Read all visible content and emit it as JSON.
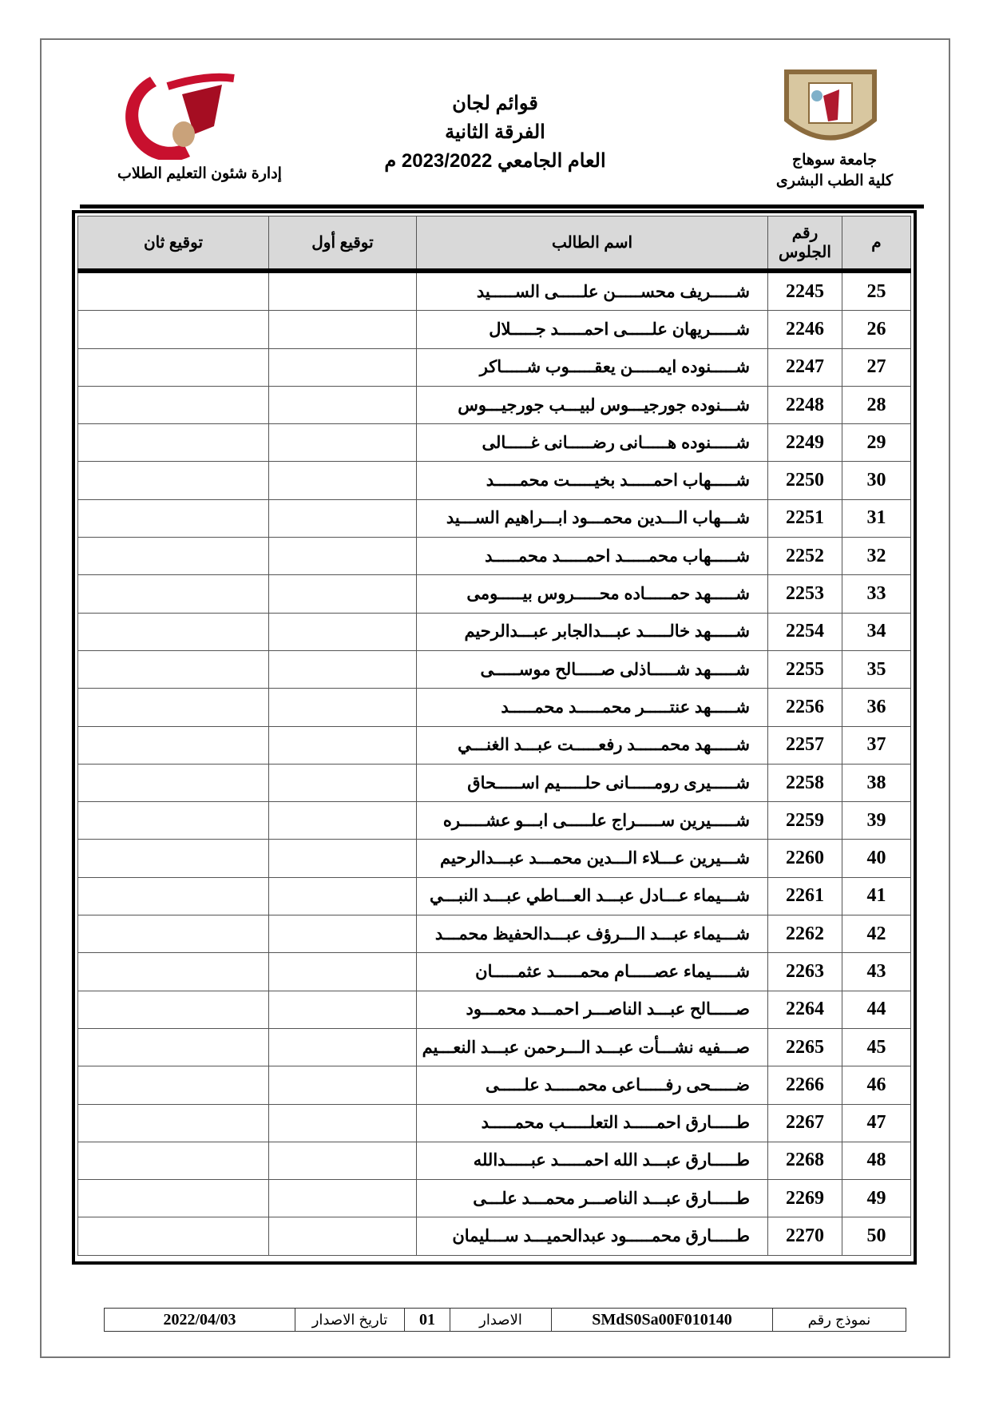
{
  "header": {
    "title": "قوائم لجان",
    "subtitle": "الفرقة الثانية",
    "year": "العام الجامعي 2023/2022 م",
    "department": "إدارة شئون التعليم الطلاب",
    "university": "جامعة سوهاج",
    "faculty": "كلية الطب البشرى",
    "left_logo_text": "جامعة سوهاج كلية الطب",
    "colors": {
      "logo_red": "#c8102e",
      "seal_brown": "#8b6b3d",
      "header_gray": "#d9d9d9"
    }
  },
  "table": {
    "columns": [
      "م",
      "رقم الجلوس",
      "اسم الطالب",
      "توقيع أول",
      "توقيع ثان"
    ],
    "rows": [
      {
        "n": "25",
        "seat": "2245",
        "name": "شـــــريف محســـــن علـــــى الســـــيد"
      },
      {
        "n": "26",
        "seat": "2246",
        "name": "شـــــريهان علـــــى احمـــــد جـــــلال"
      },
      {
        "n": "27",
        "seat": "2247",
        "name": "شـــــنوده ايمـــــن يعقـــــوب شـــــاكر"
      },
      {
        "n": "28",
        "seat": "2248",
        "name": "شـــنوده جورجيـــوس لبيـــب جورجيـــوس"
      },
      {
        "n": "29",
        "seat": "2249",
        "name": "شـــــنوده هـــــانى رضـــــانى غـــــالى"
      },
      {
        "n": "30",
        "seat": "2250",
        "name": "شـــــهاب احمـــــد بخيـــــت محمـــــد"
      },
      {
        "n": "31",
        "seat": "2251",
        "name": "شـــهاب الـــدين محمـــود ابـــراهيم الســـيد"
      },
      {
        "n": "32",
        "seat": "2252",
        "name": "شـــــهاب محمـــــد احمـــــد محمـــــد"
      },
      {
        "n": "33",
        "seat": "2253",
        "name": "شـــــهد حمـــــاده محـــــروس بيـــــومى"
      },
      {
        "n": "34",
        "seat": "2254",
        "name": "شـــــهد خالـــــد عبـــدالجابر عبـــدالرحيم"
      },
      {
        "n": "35",
        "seat": "2255",
        "name": "شـــــهد شـــــاذلى صـــــالح موســـــى"
      },
      {
        "n": "36",
        "seat": "2256",
        "name": "شـــــهد عنتـــــر محمـــــد محمـــــد"
      },
      {
        "n": "37",
        "seat": "2257",
        "name": "شـــــهد محمـــــد رفعـــــت عبـــد الغنـــي"
      },
      {
        "n": "38",
        "seat": "2258",
        "name": "شـــــيرى رومـــــانى حلـــــيم اســـــحاق"
      },
      {
        "n": "39",
        "seat": "2259",
        "name": "شـــــيرين ســـــراج علـــــى ابـــو عشـــــره"
      },
      {
        "n": "40",
        "seat": "2260",
        "name": "شـــيرين عـــلاء الـــدين محمـــد عبـــدالرحيم"
      },
      {
        "n": "41",
        "seat": "2261",
        "name": "شـــيماء عـــادل عبـــد العـــاطي عبـــد النبـــي"
      },
      {
        "n": "42",
        "seat": "2262",
        "name": "شـــيماء عبـــد الـــرؤف عبـــدالحفيظ محمـــد"
      },
      {
        "n": "43",
        "seat": "2263",
        "name": "شـــــيماء عصـــــام محمـــــد عثمـــــان"
      },
      {
        "n": "44",
        "seat": "2264",
        "name": "صـــــالح عبـــد الناصـــر احمـــد محمـــود"
      },
      {
        "n": "45",
        "seat": "2265",
        "name": "صـــفيه نشـــأت عبـــد الـــرحمن عبـــد النعـــيم"
      },
      {
        "n": "46",
        "seat": "2266",
        "name": "ضـــــحى رفـــــاعى محمـــــد علـــــى"
      },
      {
        "n": "47",
        "seat": "2267",
        "name": "طـــــارق احمـــــد التعلـــــب محمـــــد"
      },
      {
        "n": "48",
        "seat": "2268",
        "name": "طـــــارق عبـــد الله احمـــــد عبـــــدالله"
      },
      {
        "n": "49",
        "seat": "2269",
        "name": "طـــــارق عبـــد الناصـــر محمـــد علـــى"
      },
      {
        "n": "50",
        "seat": "2270",
        "name": "طـــــارق محمـــــود عبدالحميـــد ســـليمان"
      }
    ]
  },
  "footer": {
    "form_label": "نموذج رقم",
    "form_number": "SMdS0Sa00F010140",
    "issue_label": "الاصدار",
    "issue_number": "01",
    "issue_date_label": "تاريخ الاصدار",
    "issue_date": "2022/04/03"
  }
}
